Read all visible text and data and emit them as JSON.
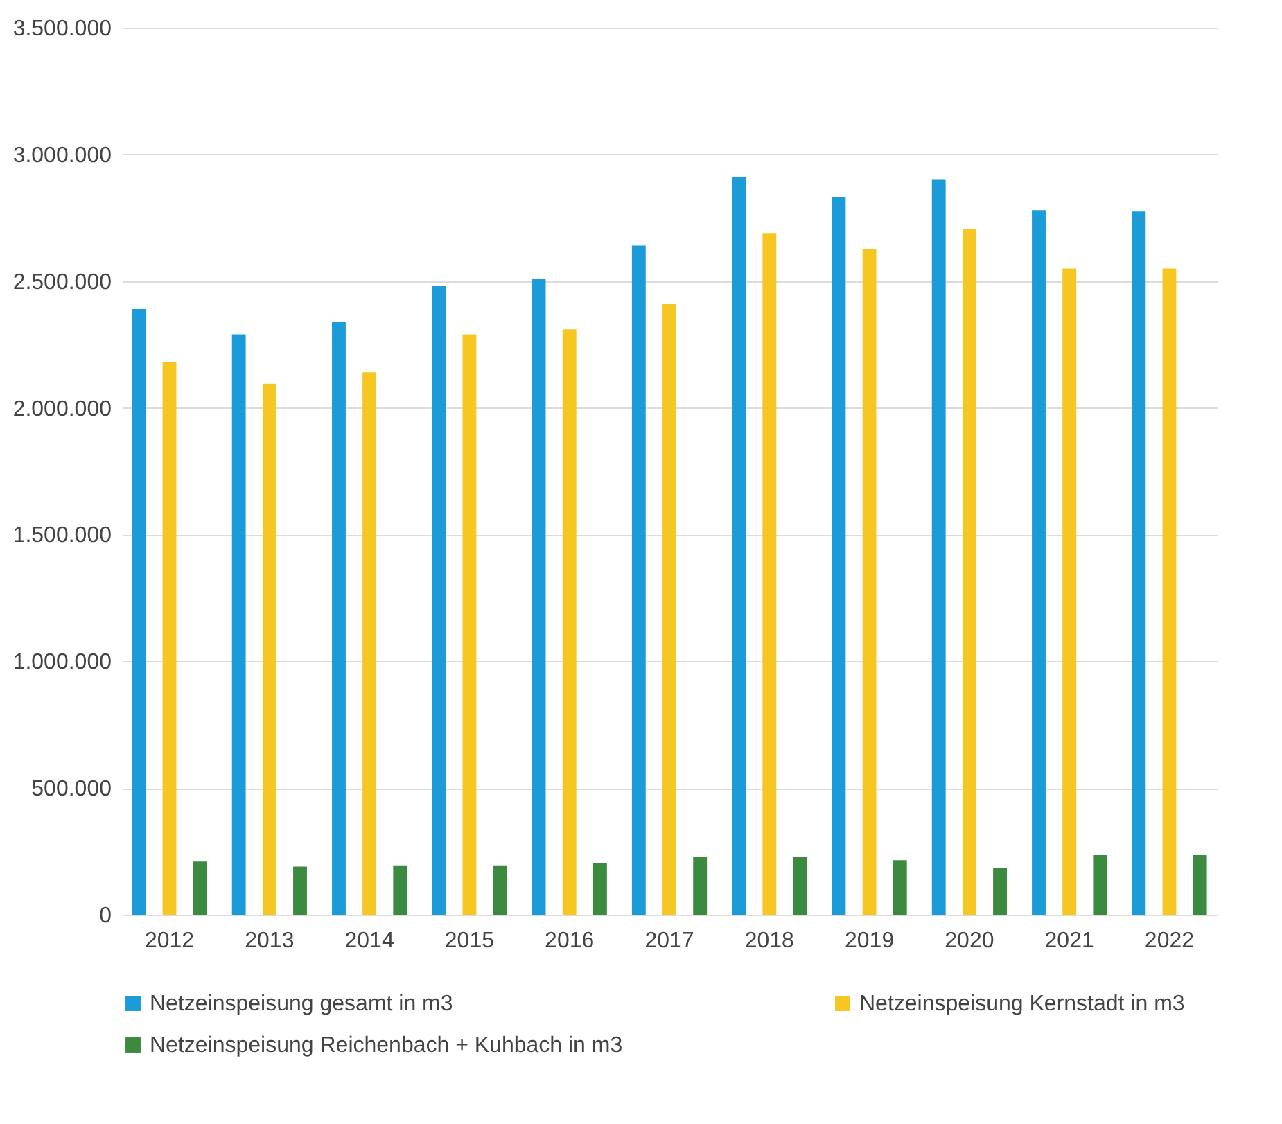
{
  "chart_data": {
    "type": "bar",
    "categories": [
      "2012",
      "2013",
      "2014",
      "2015",
      "2016",
      "2017",
      "2018",
      "2019",
      "2020",
      "2021",
      "2022"
    ],
    "series": [
      {
        "name": "Netzeinspeisung gesamt in m3",
        "color": "#1b9bd7",
        "values": [
          2390000,
          2290000,
          2340000,
          2480000,
          2510000,
          2640000,
          2910000,
          2830000,
          2900000,
          2780000,
          2775000
        ]
      },
      {
        "name": "Netzeinspeisung Kernstadt in m3",
        "color": "#f6c623",
        "values": [
          2180000,
          2095000,
          2140000,
          2290000,
          2310000,
          2410000,
          2690000,
          2625000,
          2705000,
          2550000,
          2550000
        ]
      },
      {
        "name": "Netzeinspeisung Reichenbach + Kuhbach in m3",
        "color": "#3b8a40",
        "values": [
          210000,
          190000,
          195000,
          195000,
          205000,
          230000,
          230000,
          215000,
          185000,
          235000,
          235000
        ]
      }
    ],
    "ylim": [
      0,
      3500000
    ],
    "yticks": [
      {
        "value": 0,
        "label": "0"
      },
      {
        "value": 500000,
        "label": "500.000"
      },
      {
        "value": 1000000,
        "label": "1.000.000"
      },
      {
        "value": 1500000,
        "label": "1.500.000"
      },
      {
        "value": 2000000,
        "label": "2.000.000"
      },
      {
        "value": 2500000,
        "label": "2.500.000"
      },
      {
        "value": 3000000,
        "label": "3.000.000"
      },
      {
        "value": 3500000,
        "label": "3.500.000"
      }
    ],
    "grid": "y",
    "legend": "bottom"
  }
}
